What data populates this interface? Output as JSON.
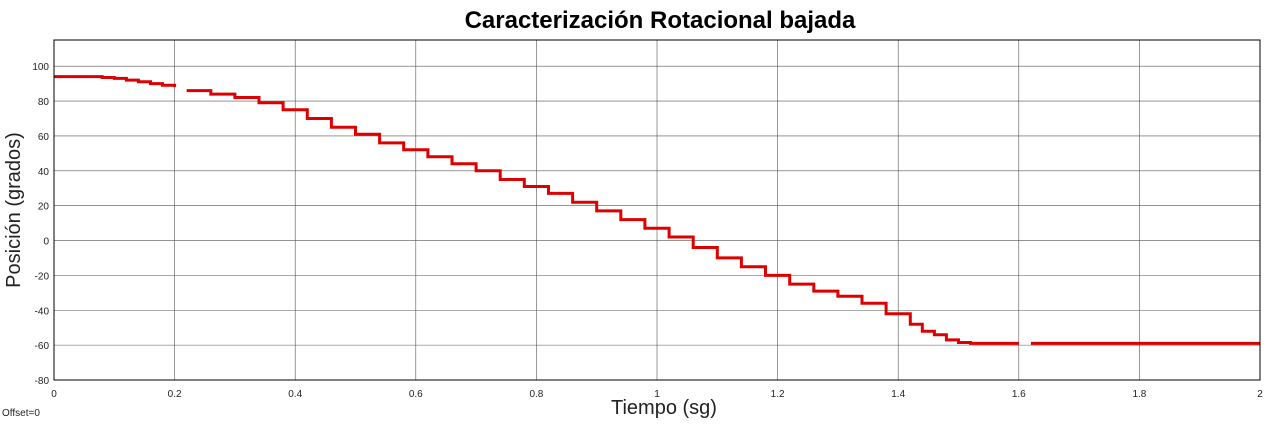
{
  "chart_data": {
    "type": "line",
    "title": "Caracterización Rotacional bajada",
    "xlabel": "Tiempo (sg)",
    "ylabel": "Posición (grados)",
    "xlim": [
      0,
      2
    ],
    "ylim": [
      -80,
      115
    ],
    "xticks": [
      0,
      0.2,
      0.4,
      0.6,
      0.8,
      1,
      1.2,
      1.4,
      1.6,
      1.8,
      2
    ],
    "xtick_labels": [
      "0",
      "0.2",
      "0.4",
      "0.6",
      "0.8",
      "1",
      "1.2",
      "1.4",
      "1.6",
      "1.8",
      "2"
    ],
    "yticks": [
      -80,
      -60,
      -40,
      -20,
      0,
      20,
      40,
      60,
      80,
      100
    ],
    "ytick_labels": [
      "-80",
      "-60",
      "-40",
      "-20",
      "0",
      "20",
      "40",
      "60",
      "80",
      "100"
    ],
    "grid": true,
    "series": [
      {
        "color": "#dd0000",
        "segments": [
          {
            "x": [
              0,
              0.04,
              0.08,
              0.1,
              0.12,
              0.14,
              0.16,
              0.18,
              0.2
            ],
            "y": [
              94,
              94,
              93.5,
              93,
              92,
              91,
              90,
              89,
              88
            ]
          },
          {
            "x": [
              0.22,
              0.26,
              0.3,
              0.34,
              0.38,
              0.42,
              0.46,
              0.5,
              0.54,
              0.58,
              0.62,
              0.66,
              0.7,
              0.74,
              0.78,
              0.82,
              0.86,
              0.9,
              0.94,
              0.98,
              1.02,
              1.06,
              1.1,
              1.14,
              1.18,
              1.22,
              1.26,
              1.3,
              1.34,
              1.38,
              1.42,
              1.44,
              1.46,
              1.48,
              1.5,
              1.52,
              1.56,
              1.6
            ],
            "y": [
              86,
              84,
              82,
              79,
              75,
              70,
              65,
              61,
              56,
              52,
              48,
              44,
              40,
              35,
              31,
              27,
              22,
              17,
              12,
              7,
              2,
              -4,
              -10,
              -15,
              -20,
              -25,
              -29,
              -32,
              -36,
              -42,
              -48,
              -52,
              -54,
              -57,
              -58.5,
              -59,
              -59,
              -59
            ]
          },
          {
            "x": [
              1.62,
              1.7,
              1.8,
              1.9,
              2
            ],
            "y": [
              -59,
              -59,
              -59,
              -59,
              -59
            ]
          }
        ]
      }
    ]
  },
  "offset_label": "Offset=0"
}
